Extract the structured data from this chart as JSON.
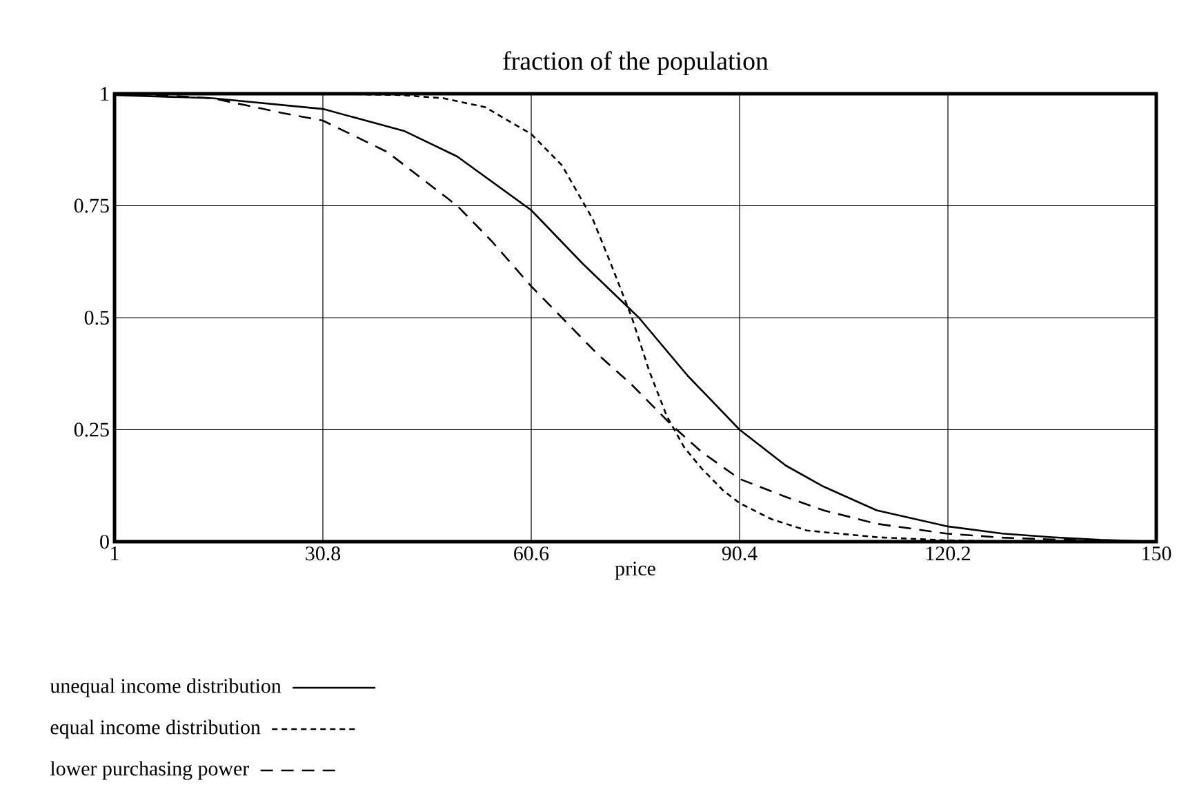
{
  "chart_data": {
    "type": "line",
    "title": "fraction of the population",
    "xlabel": "price",
    "xlim": [
      1,
      150
    ],
    "ylim": [
      0,
      1
    ],
    "xticks": [
      1,
      30.8,
      60.6,
      90.4,
      120.2,
      150
    ],
    "yticks": [
      0,
      0.25,
      0.5,
      0.75,
      1
    ],
    "grid": true,
    "legend": "bottom",
    "series": [
      {
        "name": "unequal income distribution",
        "color": "#000000",
        "line_style": "solid",
        "x": [
          1,
          15,
          30.8,
          42.4,
          50,
          60.6,
          68,
          76,
          83,
          90.4,
          97,
          102.4,
          110,
          120.2,
          128,
          135,
          142,
          150
        ],
        "values": [
          0.997,
          0.99,
          0.966,
          0.917,
          0.86,
          0.74,
          0.62,
          0.5,
          0.37,
          0.25,
          0.17,
          0.123,
          0.07,
          0.034,
          0.018,
          0.01,
          0.004,
          0
        ]
      },
      {
        "name": "equal income distribution",
        "color": "#000000",
        "line_style": "dotted",
        "x": [
          1,
          20,
          35,
          42,
          48,
          54,
          60.6,
          65,
          69.4,
          72,
          75,
          77.5,
          80,
          82.5,
          85,
          88,
          90.4,
          95,
          100,
          110,
          120,
          130
        ],
        "values": [
          1,
          1,
          0.999,
          0.997,
          0.99,
          0.97,
          0.91,
          0.84,
          0.72,
          0.62,
          0.5,
          0.38,
          0.28,
          0.21,
          0.163,
          0.115,
          0.086,
          0.05,
          0.025,
          0.01,
          0.003,
          0
        ]
      },
      {
        "name": "lower purchasing power",
        "color": "#000000",
        "line_style": "dashed",
        "x": [
          1,
          8,
          15,
          25,
          30.8,
          40,
          50,
          55,
          60.6,
          65,
          70,
          75,
          80.7,
          85,
          90.4,
          97,
          102.4,
          110,
          120,
          128,
          135,
          150
        ],
        "values": [
          0.998,
          0.996,
          0.99,
          0.957,
          0.94,
          0.87,
          0.75,
          0.67,
          0.57,
          0.5,
          0.42,
          0.35,
          0.26,
          0.2,
          0.14,
          0.1,
          0.07,
          0.04,
          0.018,
          0.009,
          0.005,
          0
        ]
      }
    ]
  }
}
